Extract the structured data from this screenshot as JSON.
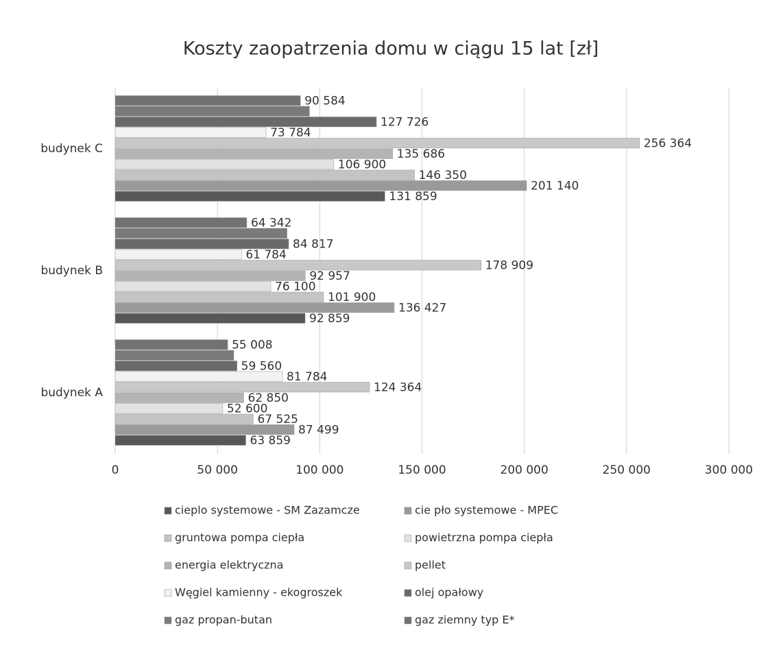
{
  "chart_data": {
    "type": "barh",
    "title": "Koszty zaopatrzenia domu w ciągu 15 lat [zł]",
    "categories": [
      "budynek A",
      "budynek B",
      "budynek C"
    ],
    "series": [
      {
        "name": "cieplo systemowe - SM Zazamcze",
        "color": "#585858",
        "values": [
          63859,
          92859,
          131859
        ],
        "value_labels": [
          "63 859",
          "92 859",
          "131 859"
        ]
      },
      {
        "name": "cie pło systemowe - MPEC",
        "color": "#9a9a9a",
        "values": [
          87499,
          136427,
          201140
        ],
        "value_labels": [
          "87 499",
          "136 427",
          "201 140"
        ]
      },
      {
        "name": "gruntowa pompa ciepła",
        "color": "#c4c4c4",
        "values": [
          67525,
          101900,
          146350
        ],
        "value_labels": [
          "67 525",
          "101 900",
          "146 350"
        ]
      },
      {
        "name": "powietrzna pompa ciepła",
        "color": "#e2e2e2",
        "values": [
          52600,
          76100,
          106900
        ],
        "value_labels": [
          "52 600",
          "76 100",
          "106 900"
        ]
      },
      {
        "name": "energia elektryczna",
        "color": "#b4b4b4",
        "values": [
          62850,
          92957,
          135686
        ],
        "value_labels": [
          "62 850",
          "92 957",
          "135 686"
        ]
      },
      {
        "name": "pellet",
        "color": "#c8c8c8",
        "values": [
          124364,
          178909,
          256364
        ],
        "value_labels": [
          "124 364",
          "178 909",
          "256 364"
        ]
      },
      {
        "name": "Węgiel kamienny - ekogroszek",
        "color": "#f2f2f2",
        "values": [
          81784,
          61784,
          73784
        ],
        "value_labels": [
          "81 784",
          "61 784",
          "73 784"
        ]
      },
      {
        "name": "olej opałowy",
        "color": "#6a6a6a",
        "values": [
          59560,
          84817,
          127726
        ],
        "value_labels": [
          "59 560",
          "84 817",
          "127 726"
        ]
      },
      {
        "name": "gaz propan-butan",
        "color": "#7a7a7a",
        "values": [
          58000,
          84000,
          95000
        ]
      },
      {
        "name": "gaz ziemny typ E*",
        "color": "#727272",
        "values": [
          55008,
          64342,
          90584
        ],
        "value_labels": [
          "55 008",
          "64 342",
          "90 584"
        ]
      }
    ],
    "xlim": [
      0,
      300000
    ],
    "xticks": [
      0,
      {
        "value": 50000,
        "label": "50 000"
      },
      {
        "value": 100000,
        "label": "100 000"
      },
      {
        "value": 150000,
        "label": "150 000"
      },
      {
        "value": 200000,
        "label": "200 000"
      },
      {
        "value": 250000,
        "label": "250 000"
      },
      {
        "value": 300000,
        "label": "300 000"
      }
    ],
    "grid": true
  }
}
